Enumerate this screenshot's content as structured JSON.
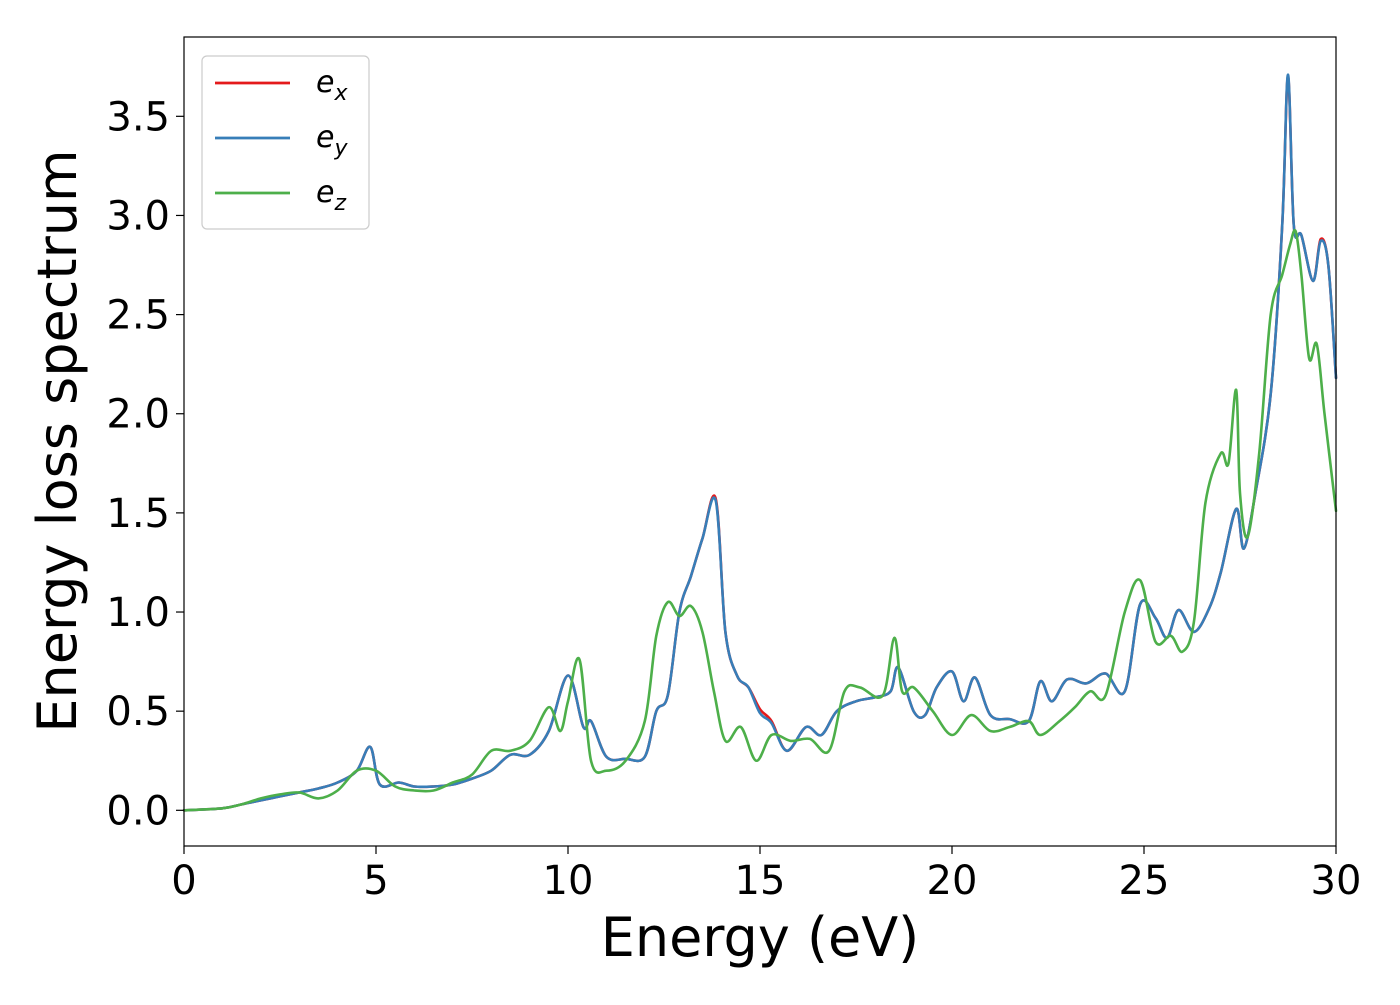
{
  "chart_data": {
    "type": "line",
    "title": "",
    "xlabel": "Energy (eV)",
    "ylabel": "Energy loss spectrum",
    "xlim": [
      0,
      30
    ],
    "ylim": [
      -0.18,
      3.9
    ],
    "xticks": [
      0,
      5,
      10,
      15,
      20,
      25,
      30
    ],
    "xtick_labels": [
      "0",
      "5",
      "10",
      "15",
      "20",
      "25",
      "30"
    ],
    "yticks": [
      0.0,
      0.5,
      1.0,
      1.5,
      2.0,
      2.5,
      3.0,
      3.5
    ],
    "ytick_labels": [
      "0.0",
      "0.5",
      "1.0",
      "1.5",
      "2.0",
      "2.5",
      "3.0",
      "3.5"
    ],
    "grid": false,
    "legend_position": "top-left",
    "series": [
      {
        "name": "e_x",
        "label_base": "e",
        "label_sub": "x",
        "color": "#e41a1c",
        "x": [
          0,
          1,
          1.5,
          2,
          2.5,
          3,
          3.5,
          4,
          4.5,
          4.85,
          5.1,
          5.6,
          6,
          6.5,
          7,
          7.5,
          8,
          8.5,
          9,
          9.5,
          10,
          10.4,
          10.6,
          11,
          11.5,
          12,
          12.3,
          12.6,
          12.9,
          13.2,
          13.5,
          13.85,
          14.1,
          14.4,
          14.7,
          15,
          15.3,
          15.7,
          16.2,
          16.6,
          17,
          17.5,
          18,
          18.4,
          18.6,
          19,
          19.3,
          19.6,
          20,
          20.3,
          20.6,
          21,
          21.5,
          22,
          22.3,
          22.6,
          23,
          23.5,
          24,
          24.5,
          24.9,
          25.3,
          25.6,
          25.9,
          26.3,
          26.7,
          27,
          27.4,
          27.6,
          27.9,
          28.3,
          28.6,
          28.75,
          28.9,
          29.1,
          29.4,
          29.6,
          29.8,
          30
        ],
        "y": [
          0,
          0.01,
          0.03,
          0.05,
          0.07,
          0.09,
          0.11,
          0.14,
          0.2,
          0.32,
          0.13,
          0.14,
          0.12,
          0.12,
          0.13,
          0.16,
          0.2,
          0.28,
          0.28,
          0.4,
          0.68,
          0.42,
          0.45,
          0.27,
          0.26,
          0.27,
          0.5,
          0.58,
          1.0,
          1.18,
          1.37,
          1.57,
          0.9,
          0.68,
          0.62,
          0.51,
          0.45,
          0.3,
          0.42,
          0.38,
          0.5,
          0.55,
          0.57,
          0.6,
          0.72,
          0.5,
          0.48,
          0.62,
          0.7,
          0.55,
          0.67,
          0.48,
          0.46,
          0.45,
          0.65,
          0.55,
          0.66,
          0.64,
          0.69,
          0.6,
          1.04,
          0.97,
          0.87,
          1.01,
          0.9,
          1.02,
          1.2,
          1.52,
          1.32,
          1.6,
          2.1,
          2.95,
          3.7,
          2.95,
          2.9,
          2.67,
          2.88,
          2.75,
          2.18
        ]
      },
      {
        "name": "e_y",
        "label_base": "e",
        "label_sub": "y",
        "color": "#377eb8",
        "x": [
          0,
          1,
          1.5,
          2,
          2.5,
          3,
          3.5,
          4,
          4.5,
          4.85,
          5.1,
          5.6,
          6,
          6.5,
          7,
          7.5,
          8,
          8.5,
          9,
          9.5,
          10,
          10.4,
          10.6,
          11,
          11.5,
          12,
          12.3,
          12.6,
          12.9,
          13.2,
          13.5,
          13.85,
          14.1,
          14.4,
          14.7,
          15,
          15.3,
          15.7,
          16.2,
          16.6,
          17,
          17.5,
          18,
          18.4,
          18.6,
          19,
          19.3,
          19.6,
          20,
          20.3,
          20.6,
          21,
          21.5,
          22,
          22.3,
          22.6,
          23,
          23.5,
          24,
          24.5,
          24.9,
          25.3,
          25.6,
          25.9,
          26.3,
          26.7,
          27,
          27.4,
          27.6,
          27.9,
          28.3,
          28.6,
          28.75,
          28.9,
          29.1,
          29.4,
          29.6,
          29.8,
          30
        ],
        "y": [
          0,
          0.01,
          0.03,
          0.05,
          0.07,
          0.09,
          0.11,
          0.14,
          0.2,
          0.32,
          0.13,
          0.14,
          0.12,
          0.12,
          0.13,
          0.16,
          0.2,
          0.28,
          0.28,
          0.4,
          0.68,
          0.42,
          0.45,
          0.27,
          0.26,
          0.27,
          0.5,
          0.58,
          1.0,
          1.18,
          1.37,
          1.56,
          0.9,
          0.68,
          0.62,
          0.49,
          0.44,
          0.3,
          0.42,
          0.38,
          0.5,
          0.55,
          0.57,
          0.6,
          0.72,
          0.5,
          0.48,
          0.62,
          0.7,
          0.55,
          0.67,
          0.48,
          0.46,
          0.45,
          0.65,
          0.55,
          0.66,
          0.64,
          0.69,
          0.6,
          1.04,
          0.97,
          0.87,
          1.01,
          0.9,
          1.02,
          1.2,
          1.52,
          1.32,
          1.6,
          2.1,
          2.95,
          3.71,
          2.95,
          2.9,
          2.67,
          2.87,
          2.75,
          2.18
        ]
      },
      {
        "name": "e_z",
        "label_base": "e",
        "label_sub": "z",
        "color": "#4daf4a",
        "x": [
          0,
          1,
          1.5,
          2,
          2.5,
          3,
          3.5,
          4,
          4.5,
          5,
          5.5,
          6,
          6.5,
          7,
          7.5,
          8,
          8.5,
          9,
          9.5,
          9.8,
          10,
          10.3,
          10.6,
          11,
          11.5,
          12,
          12.3,
          12.6,
          12.9,
          13.2,
          13.5,
          13.8,
          14.1,
          14.5,
          14.9,
          15.3,
          15.8,
          16.3,
          16.8,
          17.2,
          17.6,
          18.2,
          18.5,
          18.7,
          19,
          19.5,
          20,
          20.5,
          21,
          21.5,
          22,
          22.3,
          22.8,
          23.2,
          23.6,
          24,
          24.5,
          24.9,
          25.3,
          25.7,
          26,
          26.3,
          26.6,
          27,
          27.2,
          27.4,
          27.5,
          27.7,
          28,
          28.3,
          28.6,
          28.8,
          28.95,
          29.1,
          29.3,
          29.5,
          29.7,
          30
        ],
        "y": [
          0,
          0.01,
          0.03,
          0.06,
          0.08,
          0.09,
          0.06,
          0.1,
          0.2,
          0.2,
          0.12,
          0.1,
          0.1,
          0.14,
          0.18,
          0.3,
          0.3,
          0.35,
          0.52,
          0.4,
          0.55,
          0.76,
          0.25,
          0.2,
          0.25,
          0.45,
          0.88,
          1.05,
          0.98,
          1.03,
          0.9,
          0.6,
          0.35,
          0.42,
          0.25,
          0.38,
          0.35,
          0.36,
          0.3,
          0.6,
          0.62,
          0.58,
          0.87,
          0.6,
          0.62,
          0.5,
          0.38,
          0.48,
          0.4,
          0.42,
          0.45,
          0.38,
          0.45,
          0.52,
          0.6,
          0.58,
          1.0,
          1.16,
          0.85,
          0.88,
          0.8,
          0.95,
          1.55,
          1.8,
          1.75,
          2.12,
          1.6,
          1.38,
          1.8,
          2.5,
          2.7,
          2.85,
          2.92,
          2.7,
          2.28,
          2.35,
          2.0,
          1.51
        ]
      }
    ]
  }
}
